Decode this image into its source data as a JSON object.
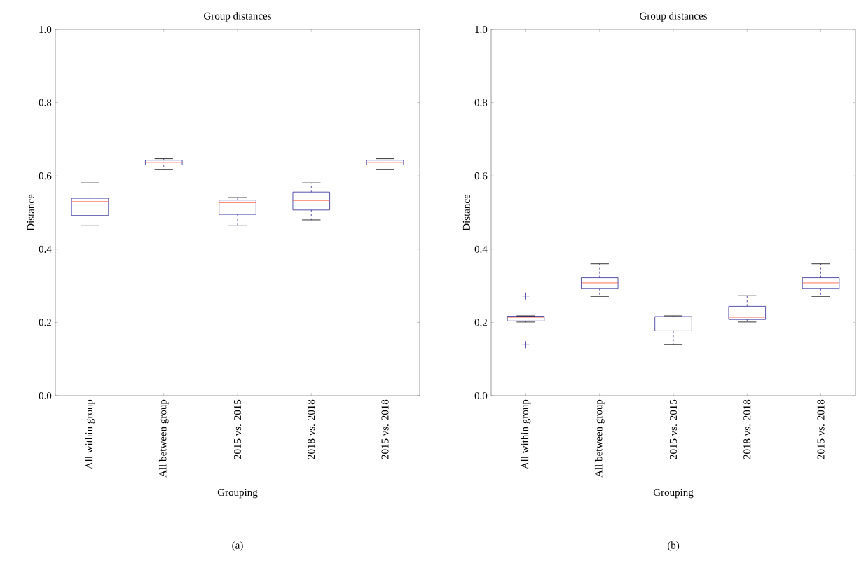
{
  "chart_data": [
    {
      "type": "box",
      "title": "Group distances",
      "xlabel": "Grouping",
      "ylabel": "Distance",
      "categories": [
        "All within group",
        "All between group",
        "2015 vs. 2015",
        "2018 vs. 2018",
        "2015 vs. 2018"
      ],
      "ylim": [
        0,
        1
      ],
      "yticks": [
        {
          "value": 0,
          "label": "0.0"
        },
        {
          "value": 0.2,
          "label": "0.2"
        },
        {
          "value": 0.4,
          "label": "0.4"
        },
        {
          "value": 0.6,
          "label": "0.6"
        },
        {
          "value": 0.8,
          "label": "0.8"
        },
        {
          "value": 1,
          "label": "1.0"
        }
      ],
      "grid": false,
      "annotations": [
        "(a)"
      ],
      "series": [
        {
          "color": "#2e2a9b",
          "boxes": [
            {
              "low": 0.464,
              "q1": 0.492,
              "median": 0.53,
              "q3": 0.539,
              "high": 0.581
            },
            {
              "low": 0.617,
              "q1": 0.63,
              "median": 0.637,
              "q3": 0.643,
              "high": 0.647
            },
            {
              "low": 0.464,
              "q1": 0.495,
              "median": 0.527,
              "q3": 0.534,
              "high": 0.541
            },
            {
              "low": 0.48,
              "q1": 0.507,
              "median": 0.533,
              "q3": 0.556,
              "high": 0.581
            },
            {
              "low": 0.617,
              "q1": 0.63,
              "median": 0.637,
              "q3": 0.643,
              "high": 0.647
            }
          ]
        }
      ]
    },
    {
      "type": "box",
      "title": "Group distances",
      "xlabel": "Grouping",
      "ylabel": "Distance",
      "categories": [
        "All within group",
        "All between group",
        "2015 vs. 2015",
        "2018 vs. 2018",
        "2015 vs. 2018"
      ],
      "ylim": [
        0,
        1
      ],
      "yticks": [
        {
          "value": 0,
          "label": "0.0"
        },
        {
          "value": 0.2,
          "label": "0.2"
        },
        {
          "value": 0.4,
          "label": "0.4"
        },
        {
          "value": 0.6,
          "label": "0.6"
        },
        {
          "value": 0.8,
          "label": "0.8"
        },
        {
          "value": 1,
          "label": "1.0"
        }
      ],
      "grid": false,
      "annotations": [
        "(b)"
      ],
      "series": [
        {
          "color": "#2e2a9b",
          "boxes": [
            {
              "low": 0.201,
              "q1": 0.204,
              "median": 0.214,
              "q3": 0.217,
              "high": 0.218,
              "outliers": [
                0.272,
                0.139
              ]
            },
            {
              "low": 0.271,
              "q1": 0.293,
              "median": 0.308,
              "q3": 0.322,
              "high": 0.36
            },
            {
              "low": 0.14,
              "q1": 0.177,
              "median": 0.215,
              "q3": 0.216,
              "high": 0.218
            },
            {
              "low": 0.201,
              "q1": 0.208,
              "median": 0.214,
              "q3": 0.244,
              "high": 0.273
            },
            {
              "low": 0.271,
              "q1": 0.293,
              "median": 0.308,
              "q3": 0.322,
              "high": 0.36
            }
          ]
        }
      ]
    }
  ]
}
